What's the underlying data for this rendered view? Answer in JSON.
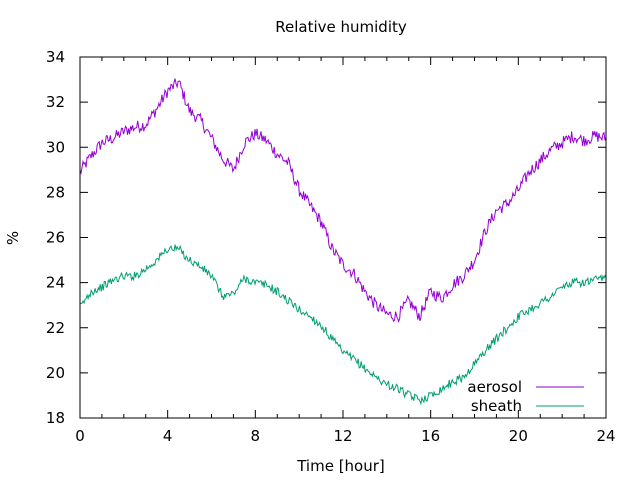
{
  "chart_data": {
    "type": "line",
    "title": "Relative humidity",
    "xlabel": "Time [hour]",
    "ylabel": "%",
    "xlim": [
      0,
      24
    ],
    "ylim": [
      18,
      34
    ],
    "xticks": [
      0,
      4,
      8,
      12,
      16,
      20,
      24
    ],
    "yticks": [
      18,
      20,
      22,
      24,
      26,
      28,
      30,
      32,
      34
    ],
    "legend_position": "bottom-right",
    "grid": false,
    "series": [
      {
        "name": "aerosol",
        "color": "#9400d3",
        "x": [
          0,
          0.5,
          1,
          1.5,
          2,
          2.5,
          3,
          3.5,
          4,
          4.5,
          5,
          5.5,
          6,
          6.5,
          7,
          7.5,
          8,
          8.5,
          9,
          9.5,
          10,
          10.5,
          11,
          11.5,
          12,
          12.5,
          13,
          13.5,
          14,
          14.5,
          15,
          15.5,
          16,
          16.5,
          17,
          17.5,
          18,
          18.5,
          19,
          19.5,
          20,
          20.5,
          21,
          21.5,
          22,
          22.5,
          23,
          23.5,
          24
        ],
        "y": [
          28.9,
          29.6,
          30.2,
          30.4,
          30.7,
          30.9,
          31.0,
          31.7,
          32.5,
          32.9,
          31.6,
          31.2,
          30.4,
          29.5,
          29.0,
          30.2,
          30.6,
          30.3,
          29.7,
          29.3,
          28.1,
          27.4,
          26.7,
          25.5,
          24.8,
          24.4,
          23.6,
          23.0,
          22.6,
          22.5,
          23.2,
          22.5,
          23.6,
          23.3,
          23.9,
          24.3,
          25.0,
          26.3,
          27.2,
          27.5,
          28.1,
          28.9,
          29.4,
          29.9,
          30.2,
          30.5,
          30.3,
          30.5,
          30.4
        ]
      },
      {
        "name": "sheath",
        "color": "#009e73",
        "x": [
          0,
          0.5,
          1,
          1.5,
          2,
          2.5,
          3,
          3.5,
          4,
          4.5,
          5,
          5.5,
          6,
          6.5,
          7,
          7.5,
          8,
          8.5,
          9,
          9.5,
          10,
          10.5,
          11,
          11.5,
          12,
          12.5,
          13,
          13.5,
          14,
          14.5,
          15,
          15.5,
          16,
          16.5,
          17,
          17.5,
          18,
          18.5,
          19,
          19.5,
          20,
          20.5,
          21,
          21.5,
          22,
          22.5,
          23,
          23.5,
          24
        ],
        "y": [
          22.9,
          23.6,
          23.8,
          24.1,
          24.3,
          24.3,
          24.6,
          25.0,
          25.5,
          25.5,
          25.0,
          24.7,
          24.3,
          23.4,
          23.5,
          24.2,
          24.0,
          23.9,
          23.6,
          23.2,
          22.8,
          22.5,
          22.1,
          21.5,
          20.9,
          20.6,
          20.2,
          19.8,
          19.5,
          19.3,
          19.0,
          18.8,
          19.0,
          19.3,
          19.6,
          19.8,
          20.4,
          21.0,
          21.5,
          22.0,
          22.5,
          22.8,
          23.1,
          23.4,
          23.8,
          24.0,
          24.0,
          24.1,
          24.2
        ]
      }
    ]
  }
}
